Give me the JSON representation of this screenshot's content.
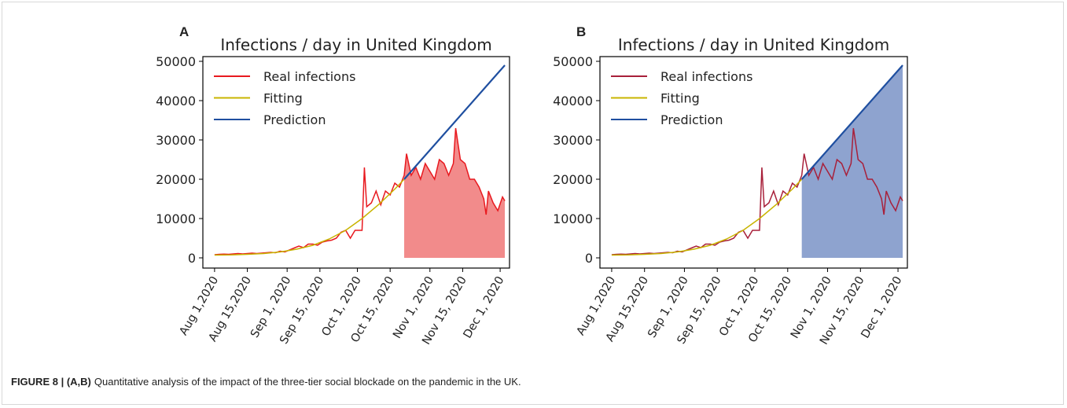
{
  "chart_data": [
    {
      "type": "line",
      "panel": "A",
      "title": "Infections / day in United Kingdom",
      "xlim": [
        "2020-07-27",
        "2020-12-05"
      ],
      "ylim": [
        -2600,
        51200
      ],
      "xticks": [
        {
          "value": "2020-08-01",
          "label": "Aug 1,2020"
        },
        {
          "value": "2020-08-15",
          "label": "Aug 15,2020"
        },
        {
          "value": "2020-09-01",
          "label": "Sep 1, 2020"
        },
        {
          "value": "2020-09-15",
          "label": "Sep 15, 2020"
        },
        {
          "value": "2020-10-01",
          "label": "Oct 1, 2020"
        },
        {
          "value": "2020-10-15",
          "label": "Oct 15, 2020"
        },
        {
          "value": "2020-11-01",
          "label": "Nov 1, 2020"
        },
        {
          "value": "2020-11-15",
          "label": "Nov 15, 2020"
        },
        {
          "value": "2020-12-01",
          "label": "Dec 1, 2020"
        }
      ],
      "yticks": [
        0,
        10000,
        20000,
        30000,
        40000,
        50000
      ],
      "legend": "upper left",
      "fill": {
        "series": 0,
        "from": "2020-10-21",
        "color": "#f28b8b"
      },
      "series": [
        {
          "name": "Real infections",
          "color": "#e8191f",
          "x": [
            "2020-08-01",
            "2020-08-03",
            "2020-08-05",
            "2020-08-07",
            "2020-08-09",
            "2020-08-11",
            "2020-08-13",
            "2020-08-15",
            "2020-08-17",
            "2020-08-19",
            "2020-08-21",
            "2020-08-23",
            "2020-08-25",
            "2020-08-27",
            "2020-08-29",
            "2020-08-31",
            "2020-09-02",
            "2020-09-04",
            "2020-09-06",
            "2020-09-08",
            "2020-09-10",
            "2020-09-12",
            "2020-09-14",
            "2020-09-16",
            "2020-09-18",
            "2020-09-20",
            "2020-09-22",
            "2020-09-24",
            "2020-09-26",
            "2020-09-28",
            "2020-09-30",
            "2020-10-02",
            "2020-10-03",
            "2020-10-04",
            "2020-10-05",
            "2020-10-07",
            "2020-10-09",
            "2020-10-11",
            "2020-10-13",
            "2020-10-15",
            "2020-10-17",
            "2020-10-19",
            "2020-10-21",
            "2020-10-22",
            "2020-10-24",
            "2020-10-26",
            "2020-10-28",
            "2020-10-30",
            "2020-11-01",
            "2020-11-03",
            "2020-11-05",
            "2020-11-07",
            "2020-11-09",
            "2020-11-11",
            "2020-11-12",
            "2020-11-14",
            "2020-11-16",
            "2020-11-18",
            "2020-11-20",
            "2020-11-22",
            "2020-11-24",
            "2020-11-25",
            "2020-11-26",
            "2020-11-28",
            "2020-11-30",
            "2020-12-02",
            "2020-12-03"
          ],
          "values": [
            800,
            900,
            950,
            900,
            1000,
            1100,
            1000,
            1100,
            1200,
            1100,
            1200,
            1300,
            1400,
            1300,
            1700,
            1500,
            2000,
            2500,
            3000,
            2600,
            3500,
            3500,
            3200,
            4000,
            4300,
            4500,
            5000,
            6500,
            7000,
            5000,
            7000,
            7000,
            7000,
            23000,
            13000,
            14000,
            17000,
            13500,
            17000,
            16000,
            19000,
            18000,
            21000,
            26500,
            21000,
            23000,
            20000,
            24000,
            22000,
            20000,
            25000,
            24000,
            21000,
            24000,
            33000,
            25000,
            24000,
            20000,
            20000,
            18000,
            15000,
            11000,
            17000,
            14000,
            12000,
            15500,
            14500
          ]
        },
        {
          "name": "Fitting",
          "color": "#c8b400",
          "x": [
            "2020-08-01",
            "2020-08-08",
            "2020-08-15",
            "2020-08-22",
            "2020-08-29",
            "2020-09-05",
            "2020-09-12",
            "2020-09-19",
            "2020-09-26",
            "2020-10-03",
            "2020-10-10",
            "2020-10-17",
            "2020-10-21"
          ],
          "values": [
            700,
            750,
            900,
            1100,
            1500,
            2200,
            3200,
            4800,
            7000,
            10000,
            13500,
            17500,
            20000
          ]
        },
        {
          "name": "Prediction",
          "color": "#1f4fa0",
          "x": [
            "2020-10-21",
            "2020-12-03"
          ],
          "values": [
            20000,
            49000
          ]
        }
      ]
    },
    {
      "type": "line",
      "panel": "B",
      "title": "Infections / day in United Kingdom",
      "xlim": [
        "2020-07-27",
        "2020-12-05"
      ],
      "ylim": [
        -2600,
        51200
      ],
      "xticks": [
        {
          "value": "2020-08-01",
          "label": "Aug 1,2020"
        },
        {
          "value": "2020-08-15",
          "label": "Aug 15,2020"
        },
        {
          "value": "2020-09-01",
          "label": "Sep 1, 2020"
        },
        {
          "value": "2020-09-15",
          "label": "Sep 15, 2020"
        },
        {
          "value": "2020-10-01",
          "label": "Oct 1, 2020"
        },
        {
          "value": "2020-10-15",
          "label": "Oct 15, 2020"
        },
        {
          "value": "2020-11-01",
          "label": "Nov 1, 2020"
        },
        {
          "value": "2020-11-15",
          "label": "Nov 15, 2020"
        },
        {
          "value": "2020-12-01",
          "label": "Dec 1, 2020"
        }
      ],
      "yticks": [
        0,
        10000,
        20000,
        30000,
        40000,
        50000
      ],
      "legend": "upper left",
      "fill": {
        "series": 2,
        "from": "2020-10-21",
        "color": "#8ea3cf"
      },
      "series": [
        {
          "name": "Real infections",
          "color": "#a8203a",
          "x": [
            "2020-08-01",
            "2020-08-03",
            "2020-08-05",
            "2020-08-07",
            "2020-08-09",
            "2020-08-11",
            "2020-08-13",
            "2020-08-15",
            "2020-08-17",
            "2020-08-19",
            "2020-08-21",
            "2020-08-23",
            "2020-08-25",
            "2020-08-27",
            "2020-08-29",
            "2020-08-31",
            "2020-09-02",
            "2020-09-04",
            "2020-09-06",
            "2020-09-08",
            "2020-09-10",
            "2020-09-12",
            "2020-09-14",
            "2020-09-16",
            "2020-09-18",
            "2020-09-20",
            "2020-09-22",
            "2020-09-24",
            "2020-09-26",
            "2020-09-28",
            "2020-09-30",
            "2020-10-02",
            "2020-10-03",
            "2020-10-04",
            "2020-10-05",
            "2020-10-07",
            "2020-10-09",
            "2020-10-11",
            "2020-10-13",
            "2020-10-15",
            "2020-10-17",
            "2020-10-19",
            "2020-10-21",
            "2020-10-22",
            "2020-10-24",
            "2020-10-26",
            "2020-10-28",
            "2020-10-30",
            "2020-11-01",
            "2020-11-03",
            "2020-11-05",
            "2020-11-07",
            "2020-11-09",
            "2020-11-11",
            "2020-11-12",
            "2020-11-14",
            "2020-11-16",
            "2020-11-18",
            "2020-11-20",
            "2020-11-22",
            "2020-11-24",
            "2020-11-25",
            "2020-11-26",
            "2020-11-28",
            "2020-11-30",
            "2020-12-02",
            "2020-12-03"
          ],
          "values": [
            800,
            900,
            950,
            900,
            1000,
            1100,
            1000,
            1100,
            1200,
            1100,
            1200,
            1300,
            1400,
            1300,
            1700,
            1500,
            2000,
            2500,
            3000,
            2600,
            3500,
            3500,
            3200,
            4000,
            4300,
            4500,
            5000,
            6500,
            7000,
            5000,
            7000,
            7000,
            7000,
            23000,
            13000,
            14000,
            17000,
            13500,
            17000,
            16000,
            19000,
            18000,
            21000,
            26500,
            21000,
            23000,
            20000,
            24000,
            22000,
            20000,
            25000,
            24000,
            21000,
            24000,
            33000,
            25000,
            24000,
            20000,
            20000,
            18000,
            15000,
            11000,
            17000,
            14000,
            12000,
            15500,
            14500
          ]
        },
        {
          "name": "Fitting",
          "color": "#c8b400",
          "x": [
            "2020-08-01",
            "2020-08-08",
            "2020-08-15",
            "2020-08-22",
            "2020-08-29",
            "2020-09-05",
            "2020-09-12",
            "2020-09-19",
            "2020-09-26",
            "2020-10-03",
            "2020-10-10",
            "2020-10-17",
            "2020-10-21"
          ],
          "values": [
            700,
            750,
            900,
            1100,
            1500,
            2200,
            3200,
            4800,
            7000,
            10000,
            13500,
            17500,
            20000
          ]
        },
        {
          "name": "Prediction",
          "color": "#1f4fa0",
          "x": [
            "2020-10-21",
            "2020-12-03"
          ],
          "values": [
            20000,
            49000
          ]
        }
      ]
    }
  ],
  "caption": {
    "label": "FIGURE 8 | (A,B)",
    "text": "Quantitative analysis of the impact of the three-tier social blockade on the pandemic in the UK."
  }
}
